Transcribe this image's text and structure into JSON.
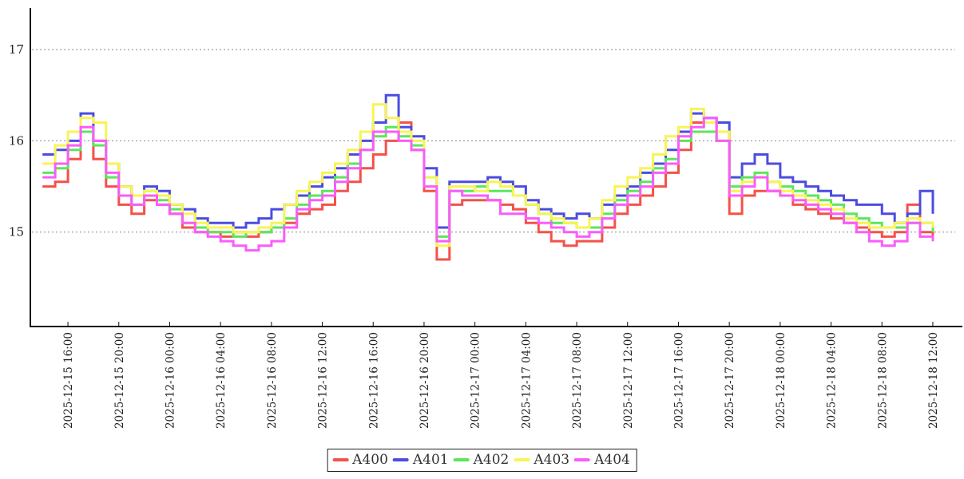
{
  "colors": {
    "background": "#ffffff",
    "axis": "#111111",
    "grid": "#888888",
    "tick_text": "#222222"
  },
  "chart_data": {
    "type": "line",
    "style": "step-after",
    "title": "",
    "xlabel": "",
    "ylabel": "",
    "legend_position": "bottom-center",
    "x_axis": {
      "start": "2025-12-15 14:00",
      "end": "2025-12-18 12:00",
      "sample_interval_minutes": 60,
      "tick_labels": [
        "2025-12-15 16:00",
        "2025-12-15 20:00",
        "2025-12-16 00:00",
        "2025-12-16 04:00",
        "2025-12-16 08:00",
        "2025-12-16 12:00",
        "2025-12-16 16:00",
        "2025-12-16 20:00",
        "2025-12-17 00:00",
        "2025-12-17 04:00",
        "2025-12-17 08:00",
        "2025-12-17 12:00",
        "2025-12-17 16:00",
        "2025-12-17 20:00",
        "2025-12-18 00:00",
        "2025-12-18 04:00",
        "2025-12-18 08:00",
        "2025-12-18 12:00"
      ],
      "tick_offsets_hours": [
        2,
        6,
        10,
        14,
        18,
        22,
        26,
        30,
        34,
        38,
        42,
        46,
        50,
        54,
        58,
        62,
        66,
        70
      ]
    },
    "y_axis": {
      "ticks": [
        15,
        16,
        17
      ],
      "range": [
        14.0,
        17.5
      ],
      "grid": "dotted"
    },
    "series": [
      {
        "name": "A400",
        "color": "#f4514a",
        "values": [
          15.5,
          15.55,
          15.8,
          16.1,
          15.8,
          15.5,
          15.3,
          15.2,
          15.35,
          15.3,
          15.2,
          15.05,
          15.0,
          15.0,
          14.95,
          15.0,
          14.95,
          15.0,
          15.05,
          15.1,
          15.2,
          15.25,
          15.3,
          15.45,
          15.55,
          15.7,
          15.85,
          16.0,
          16.2,
          15.9,
          15.45,
          14.7,
          15.3,
          15.35,
          15.35,
          15.35,
          15.3,
          15.25,
          15.1,
          15.0,
          14.9,
          14.85,
          14.9,
          14.9,
          15.05,
          15.2,
          15.3,
          15.4,
          15.5,
          15.65,
          15.9,
          16.2,
          16.2,
          16.1,
          15.2,
          15.4,
          15.45,
          15.45,
          15.4,
          15.3,
          15.25,
          15.2,
          15.15,
          15.1,
          15.05,
          15.0,
          14.95,
          15.0,
          15.3,
          15.0,
          14.9
        ]
      },
      {
        "name": "A401",
        "color": "#4c4ce0",
        "values": [
          15.85,
          15.9,
          16.0,
          16.3,
          16.0,
          15.75,
          15.5,
          15.4,
          15.5,
          15.45,
          15.3,
          15.25,
          15.15,
          15.1,
          15.1,
          15.05,
          15.1,
          15.15,
          15.25,
          15.3,
          15.4,
          15.5,
          15.6,
          15.7,
          15.85,
          16.0,
          16.2,
          16.5,
          16.15,
          16.05,
          15.7,
          15.05,
          15.55,
          15.55,
          15.55,
          15.6,
          15.55,
          15.5,
          15.35,
          15.25,
          15.2,
          15.15,
          15.2,
          15.15,
          15.3,
          15.4,
          15.5,
          15.65,
          15.75,
          15.9,
          16.1,
          16.3,
          16.25,
          16.2,
          15.6,
          15.75,
          15.85,
          15.75,
          15.6,
          15.55,
          15.5,
          15.45,
          15.4,
          15.35,
          15.3,
          15.3,
          15.2,
          15.1,
          15.2,
          15.45,
          15.2
        ]
      },
      {
        "name": "A402",
        "color": "#5ce65c",
        "values": [
          15.65,
          15.7,
          15.9,
          16.1,
          15.95,
          15.6,
          15.4,
          15.3,
          15.45,
          15.35,
          15.25,
          15.1,
          15.05,
          15.0,
          15.0,
          14.95,
          15.0,
          15.0,
          15.05,
          15.15,
          15.3,
          15.4,
          15.45,
          15.6,
          15.75,
          15.9,
          16.05,
          16.15,
          16.05,
          15.95,
          15.6,
          14.95,
          15.45,
          15.45,
          15.5,
          15.45,
          15.45,
          15.4,
          15.3,
          15.2,
          15.1,
          15.1,
          15.05,
          15.05,
          15.2,
          15.35,
          15.45,
          15.55,
          15.7,
          15.8,
          16.0,
          16.1,
          16.1,
          16.0,
          15.5,
          15.6,
          15.65,
          15.55,
          15.5,
          15.45,
          15.4,
          15.35,
          15.3,
          15.2,
          15.15,
          15.1,
          15.05,
          15.05,
          15.1,
          15.1,
          15.0
        ]
      },
      {
        "name": "A403",
        "color": "#f8f455",
        "values": [
          15.75,
          15.95,
          16.1,
          16.25,
          16.2,
          15.75,
          15.5,
          15.4,
          15.45,
          15.4,
          15.3,
          15.2,
          15.1,
          15.05,
          15.05,
          15.0,
          15.0,
          15.05,
          15.1,
          15.3,
          15.45,
          15.55,
          15.65,
          15.75,
          15.9,
          16.1,
          16.4,
          16.25,
          16.1,
          16.0,
          15.6,
          14.85,
          15.5,
          15.5,
          15.45,
          15.55,
          15.5,
          15.4,
          15.3,
          15.2,
          15.15,
          15.1,
          15.05,
          15.15,
          15.35,
          15.5,
          15.6,
          15.7,
          15.85,
          16.05,
          16.15,
          16.35,
          16.2,
          16.1,
          15.45,
          15.55,
          15.6,
          15.55,
          15.45,
          15.4,
          15.35,
          15.3,
          15.25,
          15.15,
          15.1,
          15.05,
          15.05,
          15.1,
          15.15,
          15.1,
          15.05
        ]
      },
      {
        "name": "A404",
        "color": "#fa5cfa",
        "values": [
          15.6,
          15.75,
          15.95,
          16.15,
          16.0,
          15.65,
          15.4,
          15.3,
          15.4,
          15.3,
          15.2,
          15.1,
          15.0,
          14.95,
          14.9,
          14.85,
          14.8,
          14.85,
          14.9,
          15.05,
          15.25,
          15.35,
          15.4,
          15.55,
          15.7,
          15.9,
          16.1,
          16.1,
          16.0,
          15.9,
          15.5,
          14.9,
          15.45,
          15.4,
          15.4,
          15.35,
          15.2,
          15.2,
          15.15,
          15.1,
          15.05,
          15.0,
          14.95,
          15.0,
          15.15,
          15.3,
          15.4,
          15.5,
          15.65,
          15.75,
          16.05,
          16.15,
          16.25,
          16.0,
          15.4,
          15.5,
          15.6,
          15.45,
          15.4,
          15.35,
          15.3,
          15.25,
          15.2,
          15.1,
          15.0,
          14.9,
          14.85,
          14.9,
          15.1,
          14.95,
          14.9
        ]
      }
    ]
  }
}
